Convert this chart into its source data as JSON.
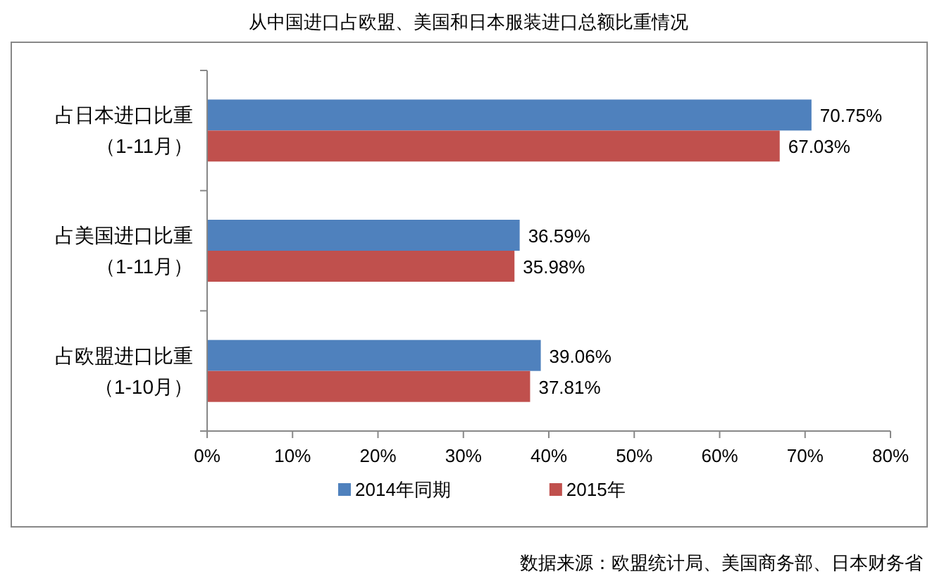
{
  "chart_data": {
    "type": "bar",
    "orientation": "horizontal",
    "title": "从中国进口占欧盟、美国和日本服装进口总额比重情况",
    "categories": [
      "占日本进口比重（1-11月）",
      "占美国进口比重（1-11月）",
      "占欧盟进口比重（1-10月）"
    ],
    "series": [
      {
        "name": "2014年同期",
        "color": "#4f81bd",
        "values": [
          70.75,
          36.59,
          39.06
        ],
        "value_labels": [
          "70.75%",
          "36.59%",
          "39.06%"
        ]
      },
      {
        "name": "2015年",
        "color": "#c0504d",
        "values": [
          67.03,
          35.98,
          37.81
        ],
        "value_labels": [
          "67.03%",
          "35.98%",
          "37.81%"
        ]
      }
    ],
    "xlim": [
      0,
      80
    ],
    "xticks": [
      {
        "value": 0,
        "label": "0%"
      },
      {
        "value": 10,
        "label": "10%"
      },
      {
        "value": 20,
        "label": "20%"
      },
      {
        "value": 30,
        "label": "30%"
      },
      {
        "value": 40,
        "label": "40%"
      },
      {
        "value": 50,
        "label": "50%"
      },
      {
        "value": 60,
        "label": "60%"
      },
      {
        "value": 70,
        "label": "70%"
      },
      {
        "value": 80,
        "label": "80%"
      }
    ],
    "legend": "bottom",
    "annotations": [
      "数据来源：欧盟统计局、美国商务部、日本财务省"
    ]
  }
}
